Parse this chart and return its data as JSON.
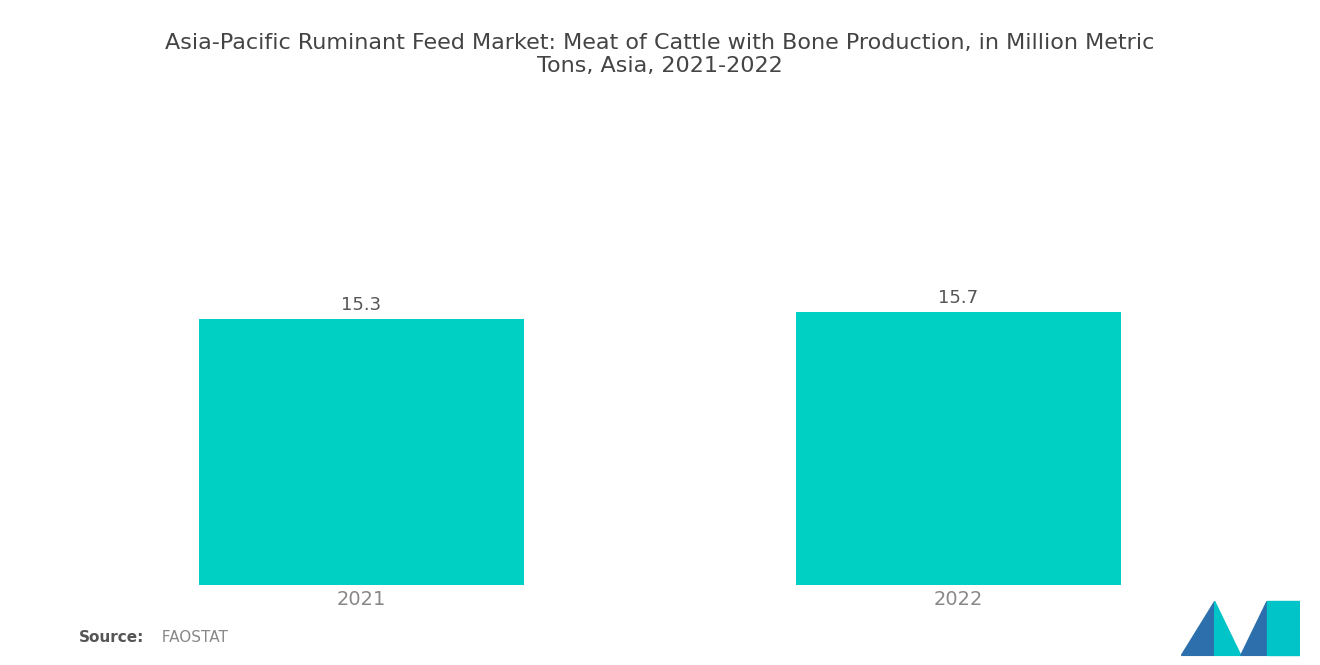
{
  "title": "Asia-Pacific Ruminant Feed Market: Meat of Cattle with Bone Production, in Million Metric\nTons, Asia, 2021-2022",
  "categories": [
    "2021",
    "2022"
  ],
  "values": [
    15.3,
    15.7
  ],
  "bar_color": "#00D0C4",
  "bar_width": 0.38,
  "value_labels": [
    "15.3",
    "15.7"
  ],
  "source_bold": "Source:",
  "source_normal": "  FAOSTAT",
  "title_fontsize": 16,
  "label_fontsize": 14,
  "value_fontsize": 13,
  "source_fontsize": 11,
  "bg_color": "#ffffff",
  "text_color": "#888888",
  "ylim": [
    0,
    26
  ],
  "bar_positions": [
    0.3,
    1.0
  ],
  "xlim": [
    0.0,
    1.3
  ],
  "logo_blue": "#2C6FAC",
  "logo_teal": "#00C4C8"
}
